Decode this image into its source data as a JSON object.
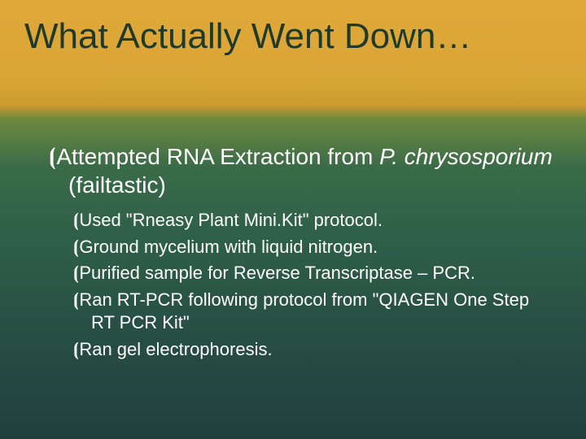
{
  "slide": {
    "title": "What Actually Went Down…",
    "title_color": "#1f3a2a",
    "title_fontsize": 44,
    "background_gradient_stops": [
      "#e0a83a",
      "#d9a636",
      "#cd9a2f",
      "#6f8a3f",
      "#3a6b48",
      "#2e5f48",
      "#274f44",
      "#223f3e"
    ],
    "body_color": "#ffffff",
    "bullet_glyph": "⦗",
    "lvl1": {
      "fontsize": 28,
      "pre": "Attempted RNA Extraction from ",
      "italic": "P. chrysosporium",
      "post": " (failtastic)"
    },
    "lvl2": {
      "fontsize": 22,
      "items": [
        "Used \"Rneasy Plant Mini.Kit\" protocol.",
        "Ground mycelium with liquid nitrogen.",
        "Purified sample for Reverse Transcriptase – PCR.",
        "Ran RT-PCR following protocol from \"QIAGEN One Step RT PCR Kit\"",
        "Ran gel electrophoresis."
      ]
    }
  }
}
